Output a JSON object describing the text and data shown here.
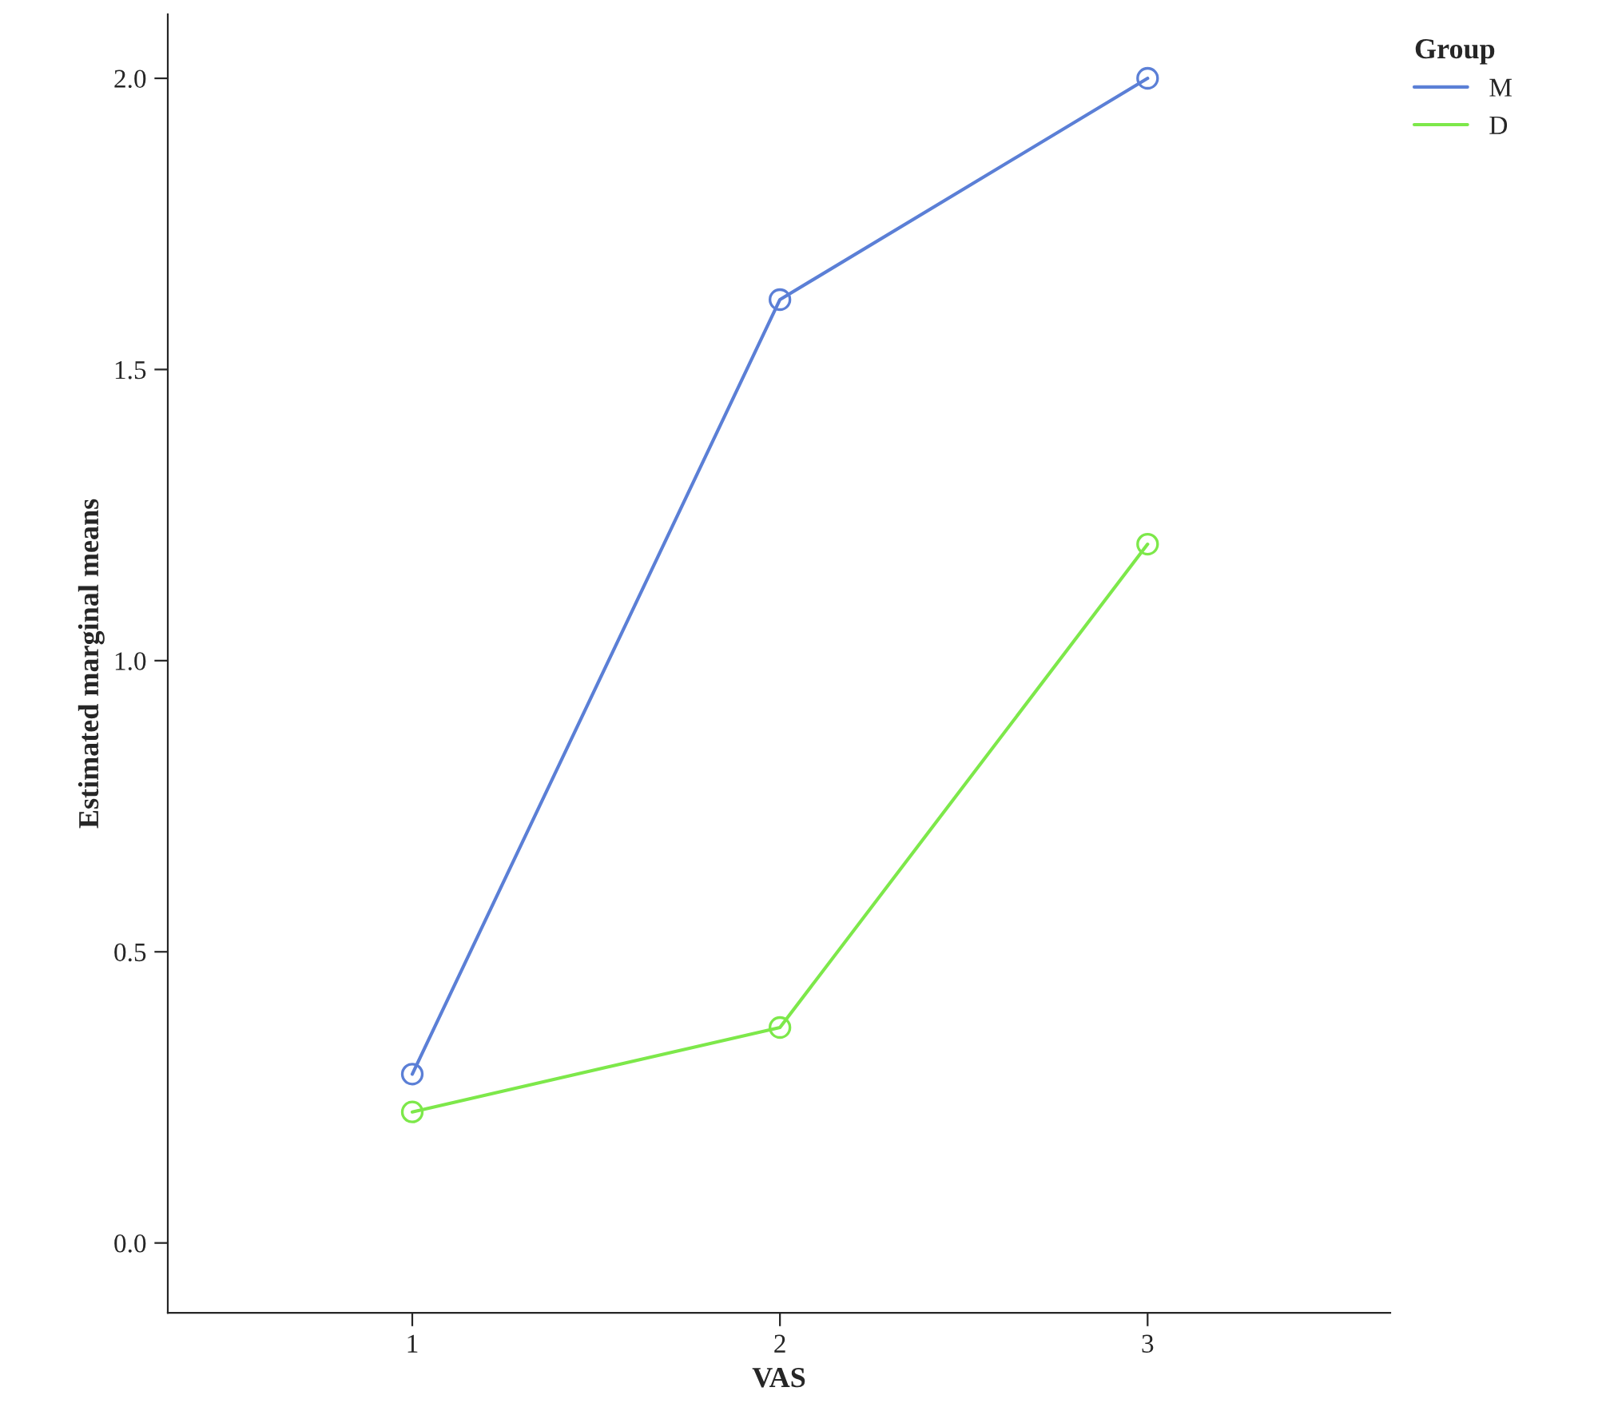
{
  "chart_data": {
    "type": "line",
    "xlabel": "VAS",
    "ylabel": "Estimated marginal means",
    "legend_title": "Group",
    "legend": "top right",
    "marker": "circle",
    "grid": false,
    "x": [
      1,
      2,
      3
    ],
    "series": [
      {
        "name": "M",
        "color": "#5b7fd6",
        "values": [
          0.29,
          1.62,
          2.0
        ]
      },
      {
        "name": "D",
        "color": "#7de84a",
        "values": [
          0.225,
          0.37,
          1.2
        ]
      }
    ],
    "xlim": [
      0.335,
      3.66
    ],
    "xticks": [
      1,
      2,
      3
    ],
    "ylim": [
      -0.12,
      2.11
    ],
    "yticks": [
      {
        "value": 0,
        "label": "0.0"
      },
      {
        "value": 0.5,
        "label": "0.5"
      },
      {
        "value": 1,
        "label": "1.0"
      },
      {
        "value": 1.5,
        "label": "1.5"
      },
      {
        "value": 2,
        "label": "2.0"
      }
    ]
  }
}
